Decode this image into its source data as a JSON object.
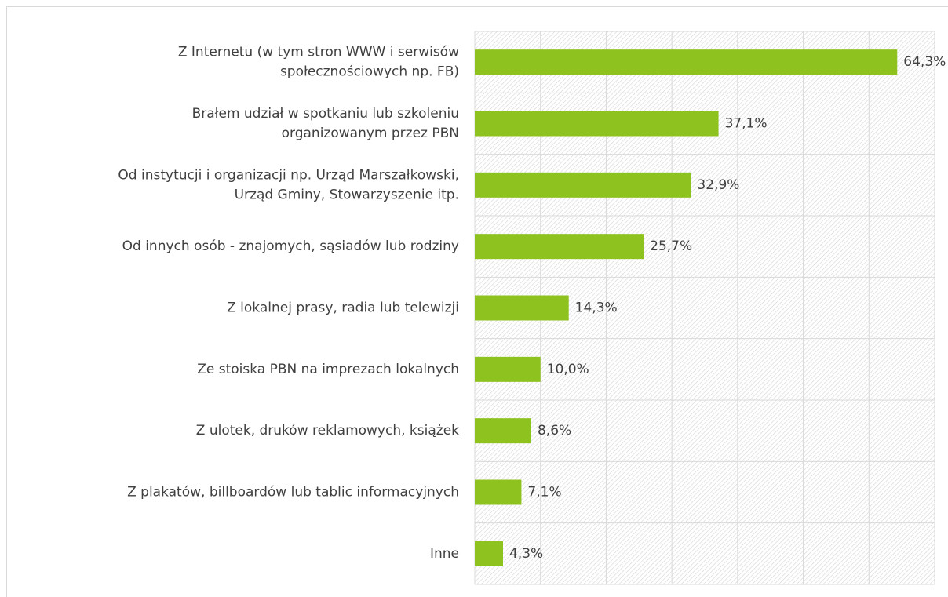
{
  "chart_data": {
    "type": "bar",
    "orientation": "horizontal",
    "categories": [
      "Z Internetu (w tym stron WWW i serwisów\nspołecznościowych np. FB)",
      "Brałem udział w spotkaniu lub szkoleniu\norganizowanym przez PBN",
      "Od instytucji i organizacji np. Urząd Marszałkowski,\nUrząd Gminy, Stowarzyszenie itp.",
      "Od innych osób - znajomych, sąsiadów lub rodziny",
      "Z lokalnej prasy, radia lub telewizji",
      "Ze stoiska PBN na imprezach lokalnych",
      "Z ulotek, druków reklamowych, książek",
      "Z plakatów, billboardów lub tablic informacyjnych",
      "Inne"
    ],
    "values": [
      64.3,
      37.1,
      32.9,
      25.7,
      14.3,
      10.0,
      8.6,
      7.1,
      4.3
    ],
    "value_labels": [
      "64,3%",
      "37,1%",
      "32,9%",
      "25,7%",
      "14,3%",
      "10,0%",
      "8,6%",
      "7,1%",
      "4,3%"
    ],
    "color": "#8dc21f",
    "xlim": [
      0,
      70
    ],
    "xticks": [
      0,
      10,
      20,
      30,
      40,
      50,
      60,
      70
    ],
    "grid": true
  }
}
